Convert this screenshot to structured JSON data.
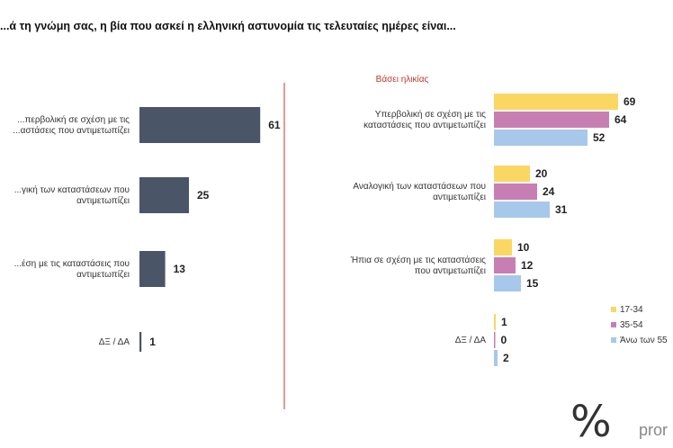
{
  "title": "...ά τη γνώμη σας, η βία που ασκεί η ελληνική αστυνομία τις τελευταίες ημέρες είναι...",
  "logo": {
    "mark": "%",
    "text": "pror"
  },
  "colors": {
    "total": "#4a5568",
    "17-34": "#f9d762",
    "35-54": "#c77fb3",
    "55plus": "#a7c8ea",
    "divider": "#c0392b"
  },
  "chart_data": [
    {
      "type": "bar",
      "orientation": "horizontal",
      "categories": [
        [
          "...περβολική σε σχέση με τις",
          "...αστάσεις που αντιμετωπίζει"
        ],
        [
          "...γική των καταστάσεων που",
          "αντιμετωπίζει"
        ],
        [
          "...έση με τις καταστάσεις που",
          "αντιμετωπίζει"
        ],
        [
          "ΔΞ / ΔΑ"
        ]
      ],
      "series": [
        {
          "values": [
            61,
            25,
            13,
            1
          ]
        }
      ]
    },
    {
      "type": "bar",
      "orientation": "horizontal",
      "title": "Βάσει ηλικίας",
      "categories": [
        [
          "Υπερβολική σε σχέση με τις",
          "καταστάσεις που αντιμετωπίζει"
        ],
        [
          "Αναλογική των καταστάσεων που",
          "αντιμετωπίζει"
        ],
        [
          "Ήπια σε σχέση με τις καταστάσεις",
          "που αντιμετωπίζει"
        ],
        [
          "ΔΞ / ΔΑ"
        ]
      ],
      "legend_position": "bottom-right",
      "series": [
        {
          "name": "17-34",
          "values": [
            69,
            20,
            10,
            1
          ]
        },
        {
          "name": "35-54",
          "values": [
            64,
            24,
            12,
            0
          ]
        },
        {
          "name": "Άνω των 55",
          "values": [
            52,
            31,
            15,
            2
          ]
        }
      ]
    }
  ]
}
